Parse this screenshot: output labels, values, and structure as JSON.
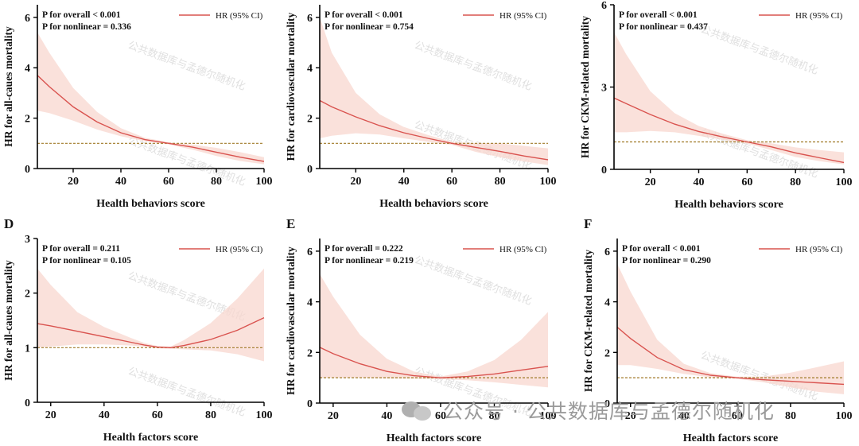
{
  "colors": {
    "line": "#d9534f",
    "band": "#f8d7cf",
    "ref": "#a07a28",
    "axis": "#000000"
  },
  "legend_label": "HR (95% CI)",
  "watermark": {
    "text": "公众号 · 公共数据库与孟德尔随机化",
    "tile_text": "公共数据库与孟德尔随机化",
    "icon": "wechat-logo-icon"
  },
  "chart_data": [
    {
      "type": "line",
      "panel": "",
      "p_overall": "P for overall < 0.001",
      "p_nonlinear": "P for nonlinear = 0.336",
      "xlabel": "Health behaviors score",
      "ylabel": "HR for all-caues mortality",
      "xlim": [
        5,
        100
      ],
      "ylim": [
        0,
        6.5
      ],
      "xticks": [
        "20",
        "40",
        "60",
        "80",
        "100"
      ],
      "yticks": [
        "0",
        "2",
        "4",
        "6"
      ],
      "x": [
        5,
        10,
        20,
        30,
        40,
        50,
        60,
        70,
        80,
        90,
        100
      ],
      "y": [
        3.7,
        3.25,
        2.45,
        1.85,
        1.42,
        1.15,
        1.0,
        0.85,
        0.65,
        0.45,
        0.28
      ],
      "lower": [
        2.3,
        2.2,
        1.9,
        1.55,
        1.28,
        1.08,
        0.96,
        0.75,
        0.5,
        0.3,
        0.17
      ],
      "upper": [
        5.4,
        4.6,
        3.2,
        2.25,
        1.6,
        1.22,
        1.04,
        0.95,
        0.82,
        0.65,
        0.45
      ],
      "ref": 1
    },
    {
      "type": "line",
      "panel": "",
      "p_overall": "P for overall < 0.001",
      "p_nonlinear": "P for nonlinear = 0.754",
      "xlabel": "Health behaviors score",
      "ylabel": "HR for cardiovascular mortality",
      "xlim": [
        5,
        100
      ],
      "ylim": [
        0,
        6.5
      ],
      "xticks": [
        "20",
        "40",
        "60",
        "80",
        "100"
      ],
      "yticks": [
        "0",
        "2",
        "4",
        "6"
      ],
      "x": [
        5,
        10,
        20,
        30,
        40,
        50,
        60,
        70,
        80,
        90,
        100
      ],
      "y": [
        2.7,
        2.45,
        2.05,
        1.7,
        1.42,
        1.2,
        1.0,
        0.84,
        0.68,
        0.5,
        0.35
      ],
      "lower": [
        1.2,
        1.3,
        1.4,
        1.35,
        1.2,
        1.06,
        0.94,
        0.66,
        0.45,
        0.28,
        0.14
      ],
      "upper": [
        6.0,
        4.6,
        3.0,
        2.15,
        1.65,
        1.33,
        1.06,
        1.0,
        1.0,
        0.9,
        0.8
      ],
      "ref": 1
    },
    {
      "type": "line",
      "panel": "",
      "p_overall": "P for overall < 0.001",
      "p_nonlinear": "P for nonlinear = 0.437",
      "xlabel": "Health behaviors score",
      "ylabel": "HR for CKM-related mortality",
      "xlim": [
        5,
        100
      ],
      "ylim": [
        0,
        6
      ],
      "xticks": [
        "20",
        "40",
        "60",
        "80",
        "100"
      ],
      "yticks": [
        "0",
        "3",
        "6"
      ],
      "x": [
        5,
        10,
        20,
        30,
        40,
        50,
        60,
        70,
        80,
        90,
        100
      ],
      "y": [
        2.6,
        2.4,
        2.0,
        1.65,
        1.38,
        1.18,
        1.0,
        0.82,
        0.6,
        0.42,
        0.25
      ],
      "lower": [
        1.35,
        1.35,
        1.4,
        1.35,
        1.22,
        1.08,
        0.94,
        0.7,
        0.45,
        0.3,
        0.18
      ],
      "upper": [
        5.0,
        4.2,
        2.85,
        2.05,
        1.58,
        1.3,
        1.06,
        0.95,
        0.8,
        0.7,
        0.62
      ],
      "ref": 1
    },
    {
      "type": "line",
      "panel": "D",
      "p_overall": "P for overall = 0.211",
      "p_nonlinear": "P for nonlinear = 0.105",
      "xlabel": "Health factors score",
      "ylabel": "HR for all-caues mortality",
      "xlim": [
        15,
        100
      ],
      "ylim": [
        0,
        3
      ],
      "xticks": [
        "20",
        "40",
        "60",
        "80",
        "100"
      ],
      "yticks": [
        "0",
        "1",
        "2",
        "3"
      ],
      "x": [
        15,
        20,
        30,
        40,
        50,
        55,
        60,
        65,
        70,
        80,
        90,
        100
      ],
      "y": [
        1.44,
        1.4,
        1.3,
        1.2,
        1.1,
        1.05,
        1.01,
        1.0,
        1.04,
        1.15,
        1.32,
        1.55
      ],
      "lower": [
        1.0,
        1.02,
        1.06,
        1.06,
        1.04,
        1.02,
        0.99,
        0.98,
        0.97,
        0.95,
        0.88,
        0.75
      ],
      "upper": [
        2.45,
        2.15,
        1.65,
        1.38,
        1.18,
        1.09,
        1.03,
        1.02,
        1.14,
        1.45,
        1.9,
        2.45
      ],
      "ref": 1
    },
    {
      "type": "line",
      "panel": "E",
      "p_overall": "P for overall = 0.222",
      "p_nonlinear": "P for nonlinear = 0.219",
      "xlabel": "Health factors score",
      "ylabel": "HR for cardiovascular mortality",
      "xlim": [
        15,
        100
      ],
      "ylim": [
        0,
        6.5
      ],
      "xticks": [
        "20",
        "40",
        "60",
        "80",
        "100"
      ],
      "yticks": [
        "0",
        "2",
        "4",
        "6"
      ],
      "x": [
        15,
        20,
        30,
        40,
        50,
        60,
        70,
        80,
        90,
        100
      ],
      "y": [
        2.2,
        1.95,
        1.55,
        1.25,
        1.08,
        1.0,
        1.05,
        1.15,
        1.3,
        1.45
      ],
      "lower": [
        1.0,
        1.0,
        1.0,
        0.97,
        0.96,
        0.95,
        0.9,
        0.82,
        0.72,
        0.62
      ],
      "upper": [
        5.1,
        4.2,
        2.7,
        1.75,
        1.25,
        1.05,
        1.25,
        1.7,
        2.5,
        3.6
      ],
      "ref": 1
    },
    {
      "type": "line",
      "panel": "F",
      "p_overall": "P for overall < 0.001",
      "p_nonlinear": "P for nonlinear = 0.290",
      "xlabel": "Health factors score",
      "ylabel": "HR for CKM-related mortality",
      "xlim": [
        15,
        100
      ],
      "ylim": [
        0,
        6.5
      ],
      "xticks": [
        "20",
        "40",
        "60",
        "80",
        "100"
      ],
      "yticks": [
        "0",
        "2",
        "4",
        "6"
      ],
      "x": [
        15,
        20,
        30,
        40,
        50,
        60,
        70,
        80,
        90,
        100
      ],
      "y": [
        3.0,
        2.55,
        1.8,
        1.32,
        1.1,
        1.0,
        0.92,
        0.86,
        0.8,
        0.74
      ],
      "lower": [
        1.5,
        1.5,
        1.35,
        1.15,
        1.02,
        0.96,
        0.82,
        0.62,
        0.45,
        0.35
      ],
      "upper": [
        5.5,
        4.4,
        2.5,
        1.55,
        1.18,
        1.04,
        1.05,
        1.2,
        1.42,
        1.65
      ],
      "ref": 1
    }
  ]
}
